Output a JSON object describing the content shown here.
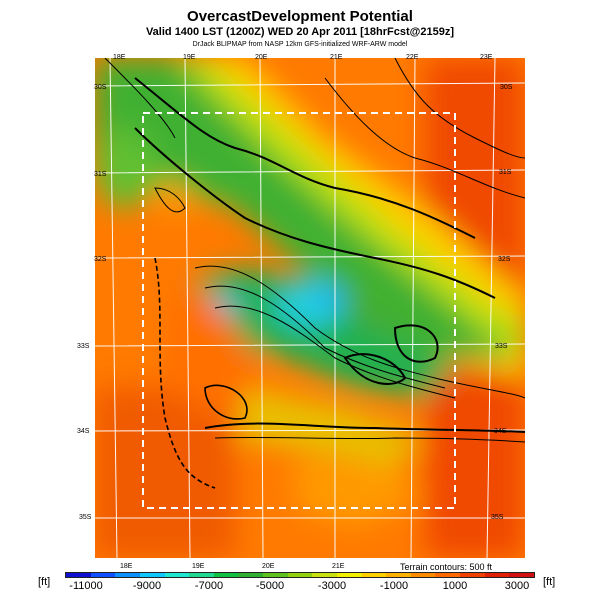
{
  "header": {
    "title": "OvercastDevelopment Potential",
    "valid_line": "Valid 1400 LST (1200Z) WED 20 Apr 2011 [18hrFcst@2159z]",
    "credit_line": "DrJack BLIPMAP from NASP 12km GFS-initialized WRF-ARW model"
  },
  "map": {
    "top_ticks": [
      "18E",
      "19E",
      "20E",
      "21E",
      "22E",
      "23E"
    ],
    "bottom_ticks": [
      "18E",
      "19E",
      "20E",
      "21E"
    ],
    "left_ticks": [
      "30S",
      "31S",
      "32S",
      "33S",
      "34S",
      "35S"
    ],
    "right_ticks": [
      "30S",
      "31S",
      "32S",
      "33S",
      "34S",
      "35S"
    ],
    "terrain_note": "Terrain contours: 500 ft"
  },
  "colorbar": {
    "unit_left": "[ft]",
    "unit_right": "[ft]",
    "labels": [
      "-11000",
      "-9000",
      "-7000",
      "-5000",
      "-3000",
      "-1000",
      "1000",
      "3000"
    ],
    "colors": [
      "#1010d0",
      "#1050ff",
      "#1090ff",
      "#10c8ff",
      "#20e8d0",
      "#20d890",
      "#10c040",
      "#30b030",
      "#60c020",
      "#90d010",
      "#c8e010",
      "#f0f000",
      "#ffd000",
      "#ffb000",
      "#ff8c00",
      "#ff6a00",
      "#f04000",
      "#e02000",
      "#d01010"
    ]
  }
}
